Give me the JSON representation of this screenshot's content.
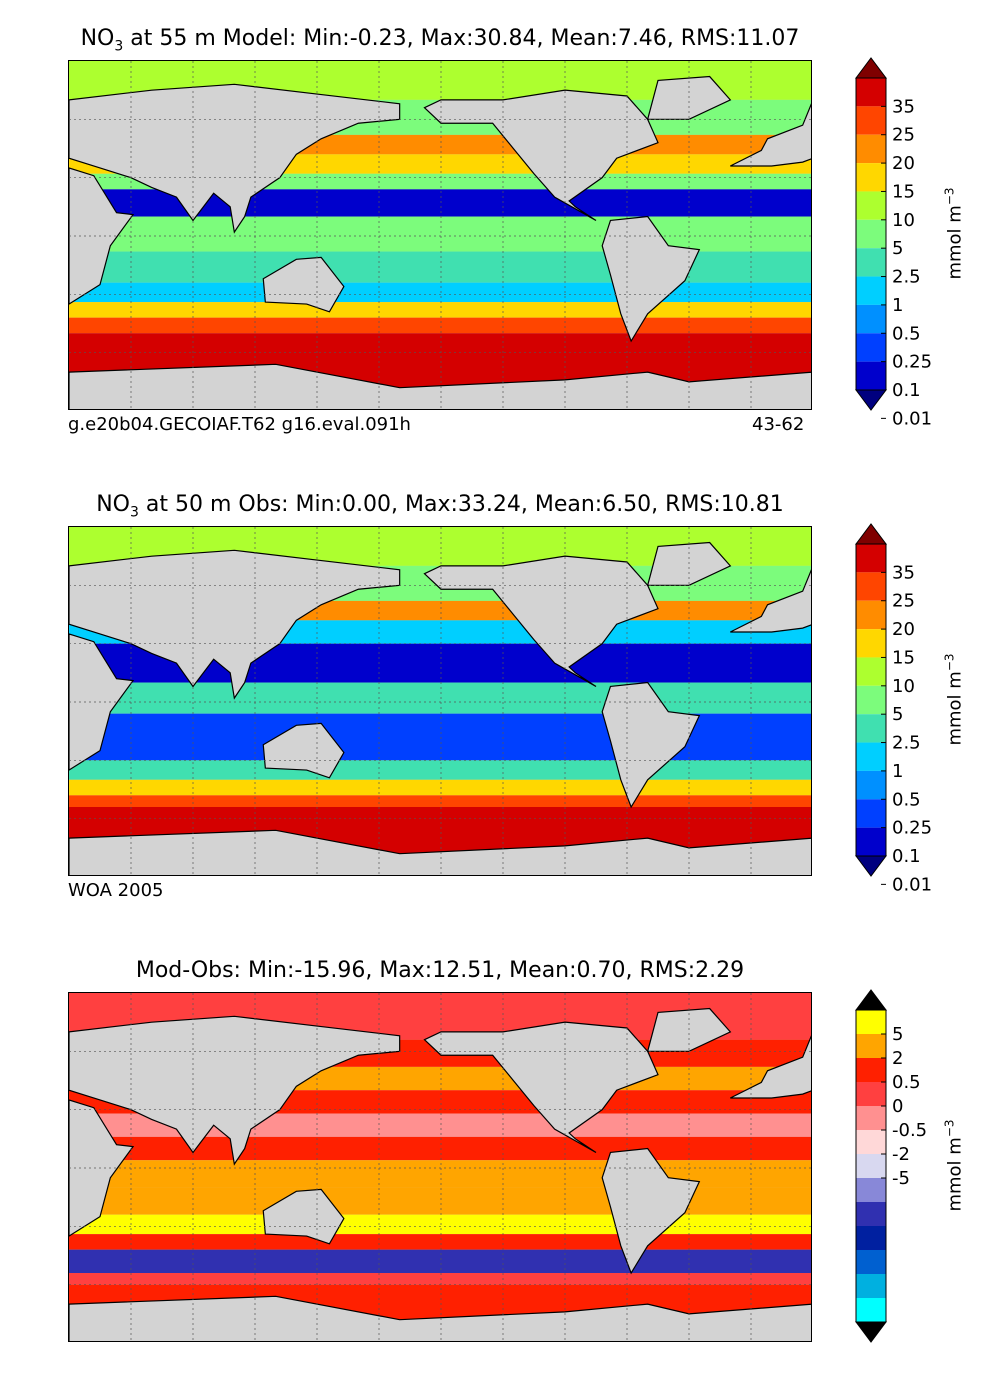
{
  "panels": [
    {
      "title_prefix": "NO",
      "title_sub": "3",
      "title_rest": " at 55 m Model: Min:-0.23, Max:30.84, Mean:7.46, RMS:11.07",
      "footer_left": "g.e20b04.GECOIAF.T62 g16.eval.091h",
      "footer_right": "43-62",
      "colorbar_unit": "mmol m",
      "colorbar_unit_sup": "−3",
      "colorbar_labels": [
        "35",
        "25",
        "20",
        "15",
        "10",
        "5",
        "2.5",
        "1",
        "0.5",
        "0.25",
        "0.1",
        "0.01"
      ],
      "colorbar_colors": [
        "#7f0000",
        "#d40000",
        "#ff4500",
        "#ff8c00",
        "#ffd700",
        "#adff2f",
        "#7cfc7c",
        "#40e0b0",
        "#00cfff",
        "#0090ff",
        "#0040ff",
        "#0000cc",
        "#00007f"
      ],
      "field_kind": "model"
    },
    {
      "title_prefix": "NO",
      "title_sub": "3",
      "title_rest": " at 50 m Obs: Min:0.00, Max:33.24, Mean:6.50, RMS:10.81",
      "footer_left": "WOA 2005",
      "footer_right": "",
      "colorbar_unit": "mmol m",
      "colorbar_unit_sup": "−3",
      "colorbar_labels": [
        "35",
        "25",
        "20",
        "15",
        "10",
        "5",
        "2.5",
        "1",
        "0.5",
        "0.25",
        "0.1",
        "0.01"
      ],
      "colorbar_colors": [
        "#7f0000",
        "#d40000",
        "#ff4500",
        "#ff8c00",
        "#ffd700",
        "#adff2f",
        "#7cfc7c",
        "#40e0b0",
        "#00cfff",
        "#0090ff",
        "#0040ff",
        "#0000cc",
        "#00007f"
      ],
      "field_kind": "obs"
    },
    {
      "title_prefix": "",
      "title_sub": "",
      "title_rest": "Mod-Obs: Min:-15.96, Max:12.51, Mean:0.70, RMS:2.29",
      "footer_left": "",
      "footer_right": "",
      "colorbar_unit": "mmol m",
      "colorbar_unit_sup": "−3",
      "colorbar_labels": [
        "5",
        "2",
        "0.5",
        "0",
        "-0.5",
        "-2",
        "-5"
      ],
      "colorbar_colors": [
        "#000000",
        "#ffff00",
        "#ffa500",
        "#ff2000",
        "#ff4040",
        "#ff9090",
        "#ffd8d8",
        "#d8d8f0",
        "#8888d8",
        "#3030b0",
        "#0020a0",
        "#0060d0",
        "#00b0e0",
        "#00ffff",
        "#000000"
      ],
      "field_kind": "diff"
    }
  ]
}
